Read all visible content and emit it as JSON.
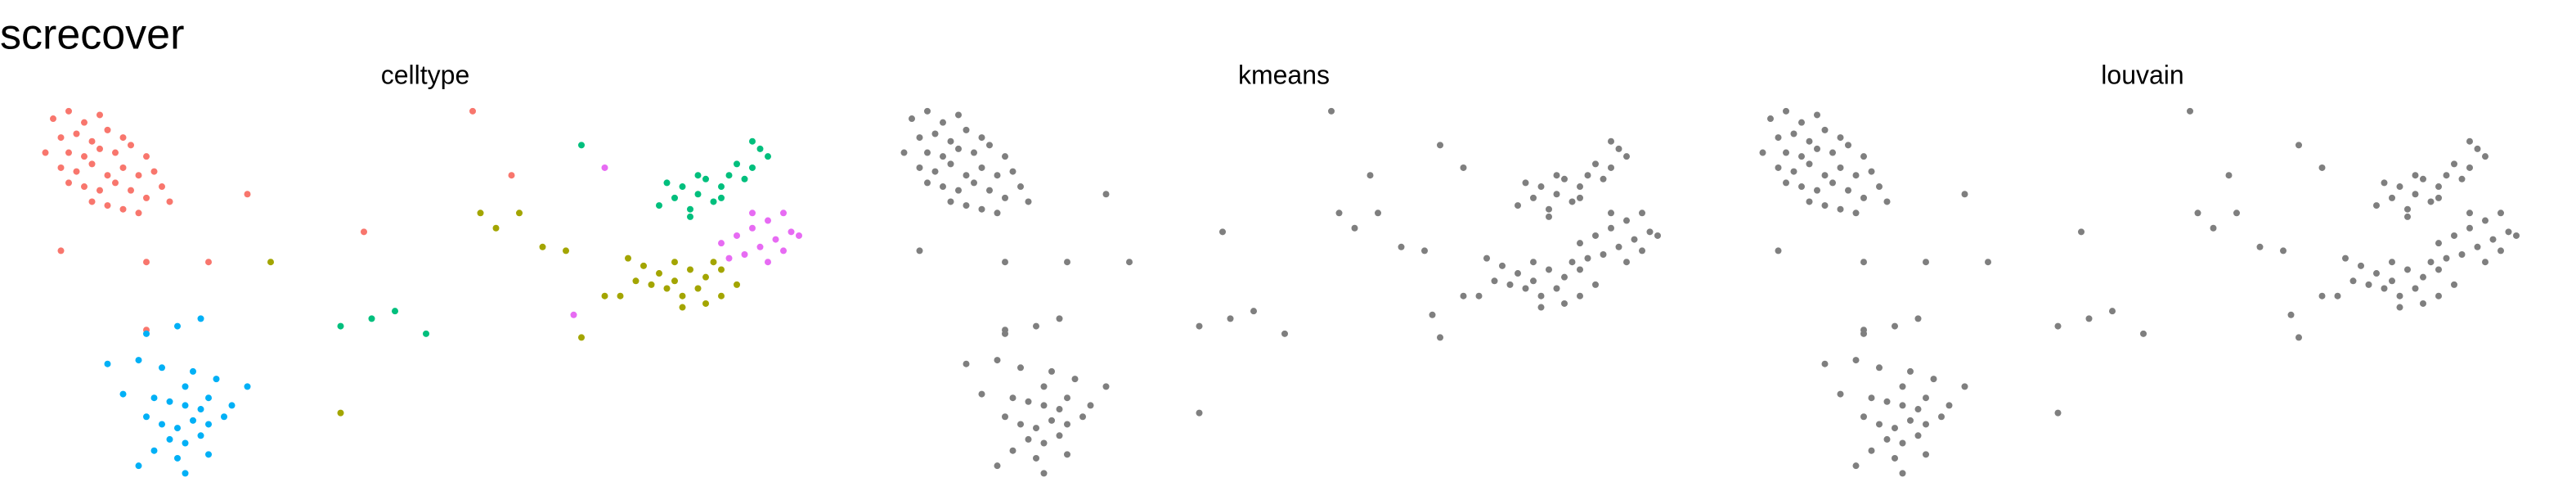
{
  "title": "screcover",
  "chart_data": [
    {
      "type": "scatter",
      "title": "celltype",
      "xlim": [
        0,
        100
      ],
      "ylim": [
        0,
        100
      ],
      "series": [
        {
          "color": "#F8766D",
          "x": [
            2,
            4,
            6,
            8,
            3,
            5,
            7,
            9,
            11,
            1,
            4,
            6,
            8,
            10,
            12,
            14,
            3,
            5,
            7,
            9,
            11,
            13,
            15,
            6,
            8,
            10,
            12,
            14,
            16,
            9,
            11,
            13,
            7,
            17,
            4,
            3,
            14,
            22,
            27,
            42,
            56,
            61,
            14
          ],
          "y": [
            95,
            97,
            94,
            96,
            90,
            91,
            89,
            92,
            90,
            86,
            86,
            85,
            87,
            86,
            88,
            85,
            82,
            81,
            83,
            80,
            82,
            80,
            81,
            77,
            76,
            78,
            76,
            74,
            77,
            72,
            71,
            70,
            73,
            73,
            78,
            60,
            57,
            57,
            75,
            65,
            97,
            80,
            39
          ]
        },
        {
          "color": "#00B0F6",
          "x": [
            14,
            18,
            21,
            13,
            9,
            16,
            20,
            19,
            23,
            11,
            15,
            17,
            19,
            21,
            22,
            25,
            27,
            14,
            16,
            18,
            20,
            22,
            24,
            17,
            19,
            21,
            15,
            18,
            22,
            19,
            13
          ],
          "y": [
            38,
            40,
            42,
            31,
            30,
            29,
            28,
            24,
            26,
            22,
            21,
            20,
            19,
            18,
            21,
            19,
            24,
            16,
            14,
            13,
            15,
            14,
            16,
            10,
            9,
            11,
            7,
            5,
            6,
            1,
            3
          ]
        },
        {
          "color": "#00BF7D",
          "x": [
            80,
            82,
            84,
            83,
            85,
            87,
            86,
            88,
            89,
            91,
            90,
            92,
            93,
            94,
            92,
            85,
            81,
            88,
            84,
            70,
            39,
            43,
            46,
            50
          ],
          "y": [
            72,
            74,
            71,
            77,
            75,
            73,
            79,
            77,
            80,
            79,
            83,
            82,
            87,
            85,
            89,
            80,
            78,
            74,
            69,
            88,
            40,
            42,
            44,
            38
          ]
        },
        {
          "color": "#E76BF3",
          "x": [
            88,
            90,
            92,
            94,
            96,
            97,
            95,
            93,
            91,
            89,
            96,
            98,
            92,
            94,
            73,
            69
          ],
          "y": [
            62,
            64,
            66,
            68,
            70,
            65,
            63,
            61,
            59,
            58,
            60,
            64,
            70,
            57,
            82,
            43
          ]
        },
        {
          "color": "#A3A500",
          "x": [
            76,
            78,
            80,
            82,
            84,
            86,
            88,
            85,
            83,
            81,
            79,
            83,
            86,
            88,
            90,
            87,
            77,
            82,
            57,
            59,
            62,
            65,
            68,
            30,
            39,
            70,
            73,
            75
          ],
          "y": [
            58,
            56,
            54,
            57,
            55,
            53,
            55,
            50,
            48,
            50,
            51,
            45,
            46,
            48,
            51,
            57,
            52,
            52,
            70,
            66,
            70,
            61,
            60,
            57,
            17,
            37,
            48,
            48
          ]
        }
      ]
    },
    {
      "type": "scatter",
      "title": "kmeans",
      "xlim": [
        0,
        100
      ],
      "ylim": [
        0,
        100
      ],
      "series": [
        {
          "color": "#7F7F7F",
          "x": [
            2,
            4,
            6,
            8,
            3,
            5,
            7,
            9,
            11,
            1,
            4,
            6,
            8,
            10,
            12,
            14,
            3,
            5,
            7,
            9,
            11,
            13,
            15,
            6,
            8,
            10,
            12,
            14,
            16,
            9,
            11,
            13,
            7,
            17,
            4,
            3,
            14,
            22,
            27,
            42,
            56,
            61,
            14,
            14,
            18,
            21,
            13,
            9,
            16,
            20,
            19,
            23,
            11,
            15,
            17,
            19,
            21,
            22,
            25,
            27,
            14,
            16,
            18,
            20,
            22,
            24,
            17,
            19,
            21,
            15,
            18,
            22,
            19,
            13,
            80,
            82,
            84,
            83,
            85,
            87,
            86,
            88,
            89,
            91,
            90,
            92,
            93,
            94,
            92,
            85,
            81,
            88,
            84,
            70,
            39,
            43,
            46,
            50,
            88,
            90,
            92,
            94,
            96,
            97,
            95,
            93,
            91,
            89,
            96,
            98,
            92,
            94,
            73,
            69,
            76,
            78,
            80,
            82,
            84,
            86,
            88,
            85,
            83,
            81,
            79,
            83,
            86,
            88,
            90,
            87,
            77,
            82,
            57,
            59,
            62,
            65,
            68,
            30,
            39,
            70,
            73,
            75
          ],
          "y": [
            95,
            97,
            94,
            96,
            90,
            91,
            89,
            92,
            90,
            86,
            86,
            85,
            87,
            86,
            88,
            85,
            82,
            81,
            83,
            80,
            82,
            80,
            81,
            77,
            76,
            78,
            76,
            74,
            77,
            72,
            71,
            70,
            73,
            73,
            78,
            60,
            57,
            57,
            75,
            65,
            97,
            80,
            39,
            38,
            40,
            42,
            31,
            30,
            29,
            28,
            24,
            26,
            22,
            21,
            20,
            19,
            18,
            21,
            19,
            24,
            16,
            14,
            13,
            15,
            14,
            16,
            10,
            9,
            11,
            7,
            5,
            6,
            1,
            3,
            72,
            74,
            71,
            77,
            75,
            73,
            79,
            77,
            80,
            79,
            83,
            82,
            87,
            85,
            89,
            80,
            78,
            74,
            69,
            88,
            40,
            42,
            44,
            38,
            62,
            64,
            66,
            68,
            70,
            65,
            63,
            61,
            59,
            58,
            60,
            64,
            70,
            57,
            82,
            43,
            58,
            56,
            54,
            57,
            55,
            53,
            55,
            50,
            48,
            50,
            51,
            45,
            46,
            48,
            51,
            57,
            52,
            52,
            70,
            66,
            70,
            61,
            60,
            57,
            17,
            37,
            48,
            48
          ]
        }
      ]
    },
    {
      "type": "scatter",
      "title": "louvain",
      "xlim": [
        0,
        100
      ],
      "ylim": [
        0,
        100
      ],
      "series": [
        {
          "color": "#7F7F7F",
          "x": [
            2,
            4,
            6,
            8,
            3,
            5,
            7,
            9,
            11,
            1,
            4,
            6,
            8,
            10,
            12,
            14,
            3,
            5,
            7,
            9,
            11,
            13,
            15,
            6,
            8,
            10,
            12,
            14,
            16,
            9,
            11,
            13,
            7,
            17,
            4,
            3,
            14,
            22,
            27,
            42,
            56,
            61,
            14,
            14,
            18,
            21,
            13,
            9,
            16,
            20,
            19,
            23,
            11,
            15,
            17,
            19,
            21,
            22,
            25,
            27,
            14,
            16,
            18,
            20,
            22,
            24,
            17,
            19,
            21,
            15,
            18,
            22,
            19,
            13,
            80,
            82,
            84,
            83,
            85,
            87,
            86,
            88,
            89,
            91,
            90,
            92,
            93,
            94,
            92,
            85,
            81,
            88,
            84,
            70,
            39,
            43,
            46,
            50,
            88,
            90,
            92,
            94,
            96,
            97,
            95,
            93,
            91,
            89,
            96,
            98,
            92,
            94,
            73,
            69,
            76,
            78,
            80,
            82,
            84,
            86,
            88,
            85,
            83,
            81,
            79,
            83,
            86,
            88,
            90,
            87,
            77,
            82,
            57,
            59,
            62,
            65,
            68,
            30,
            39,
            70,
            73,
            75
          ],
          "y": [
            95,
            97,
            94,
            96,
            90,
            91,
            89,
            92,
            90,
            86,
            86,
            85,
            87,
            86,
            88,
            85,
            82,
            81,
            83,
            80,
            82,
            80,
            81,
            77,
            76,
            78,
            76,
            74,
            77,
            72,
            71,
            70,
            73,
            73,
            78,
            60,
            57,
            57,
            75,
            65,
            97,
            80,
            39,
            38,
            40,
            42,
            31,
            30,
            29,
            28,
            24,
            26,
            22,
            21,
            20,
            19,
            18,
            21,
            19,
            24,
            16,
            14,
            13,
            15,
            14,
            16,
            10,
            9,
            11,
            7,
            5,
            6,
            1,
            3,
            72,
            74,
            71,
            77,
            75,
            73,
            79,
            77,
            80,
            79,
            83,
            82,
            87,
            85,
            89,
            80,
            78,
            74,
            69,
            88,
            40,
            42,
            44,
            38,
            62,
            64,
            66,
            68,
            70,
            65,
            63,
            61,
            59,
            58,
            60,
            64,
            70,
            57,
            82,
            43,
            58,
            56,
            54,
            57,
            55,
            53,
            55,
            50,
            48,
            50,
            51,
            45,
            46,
            48,
            51,
            57,
            52,
            52,
            70,
            66,
            70,
            61,
            60,
            57,
            17,
            37,
            48,
            48
          ]
        }
      ]
    }
  ]
}
